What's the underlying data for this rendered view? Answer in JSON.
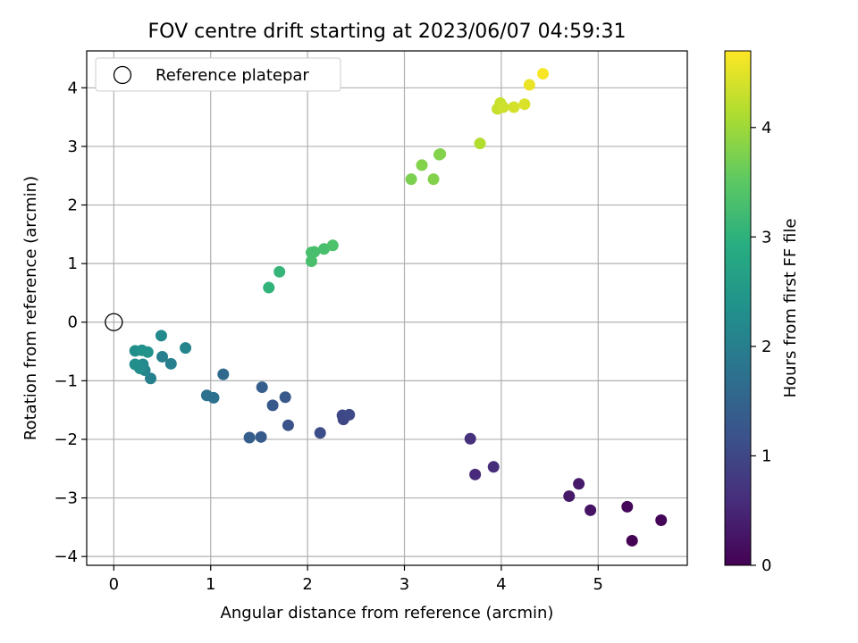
{
  "chart_data": {
    "type": "scatter",
    "title": "FOV centre drift starting at 2023/06/07 04:59:31",
    "xlabel": "Angular distance from reference (arcmin)",
    "ylabel": "Rotation from reference (arcmin)",
    "xlim": [
      -0.28,
      5.92
    ],
    "ylim": [
      -4.15,
      4.63
    ],
    "xticks": [
      0,
      1,
      2,
      3,
      4,
      5
    ],
    "xtick_labels": [
      "0",
      "1",
      "2",
      "3",
      "4",
      "5"
    ],
    "yticks": [
      -4,
      -3,
      -2,
      -1,
      0,
      1,
      2,
      3,
      4
    ],
    "ytick_labels": [
      "−4",
      "−3",
      "−2",
      "−1",
      "0",
      "1",
      "2",
      "3",
      "4"
    ],
    "grid": true,
    "legend": {
      "placement": "top-left",
      "entries": [
        {
          "label": "Reference platepar",
          "marker": "open-circle"
        }
      ]
    },
    "reference_point": {
      "x": 0,
      "y": 0
    },
    "colorbar": {
      "label": "Hours from first FF file",
      "colormap": "viridis",
      "range": [
        0,
        4.7
      ],
      "ticks": [
        0,
        1,
        2,
        3,
        4
      ],
      "tick_labels": [
        "0",
        "1",
        "2",
        "3",
        "4"
      ]
    },
    "points": [
      {
        "x": 5.35,
        "y": -3.73,
        "t": 0.02
      },
      {
        "x": 5.65,
        "y": -3.38,
        "t": 0.05
      },
      {
        "x": 5.3,
        "y": -3.15,
        "t": 0.08
      },
      {
        "x": 4.92,
        "y": -3.21,
        "t": 0.25
      },
      {
        "x": 4.7,
        "y": -2.97,
        "t": 0.32
      },
      {
        "x": 4.8,
        "y": -2.76,
        "t": 0.35
      },
      {
        "x": 3.73,
        "y": -2.6,
        "t": 0.55
      },
      {
        "x": 3.92,
        "y": -2.47,
        "t": 0.6
      },
      {
        "x": 3.68,
        "y": -1.99,
        "t": 0.65
      },
      {
        "x": 2.37,
        "y": -1.66,
        "t": 1.0
      },
      {
        "x": 2.36,
        "y": -1.59,
        "t": 1.02
      },
      {
        "x": 2.43,
        "y": -1.58,
        "t": 1.04
      },
      {
        "x": 2.13,
        "y": -1.89,
        "t": 1.1
      },
      {
        "x": 1.8,
        "y": -1.76,
        "t": 1.2
      },
      {
        "x": 1.52,
        "y": -1.96,
        "t": 1.35
      },
      {
        "x": 1.4,
        "y": -1.97,
        "t": 1.4
      },
      {
        "x": 1.64,
        "y": -1.42,
        "t": 1.3
      },
      {
        "x": 1.53,
        "y": -1.11,
        "t": 1.4
      },
      {
        "x": 1.77,
        "y": -1.28,
        "t": 1.3
      },
      {
        "x": 1.13,
        "y": -0.89,
        "t": 1.6
      },
      {
        "x": 0.96,
        "y": -1.25,
        "t": 1.75
      },
      {
        "x": 1.03,
        "y": -1.29,
        "t": 1.75
      },
      {
        "x": 0.59,
        "y": -0.71,
        "t": 2.0
      },
      {
        "x": 0.5,
        "y": -0.59,
        "t": 2.0
      },
      {
        "x": 0.74,
        "y": -0.44,
        "t": 2.1
      },
      {
        "x": 0.49,
        "y": -0.23,
        "t": 2.2
      },
      {
        "x": 0.38,
        "y": -0.96,
        "t": 2.05
      },
      {
        "x": 0.32,
        "y": -0.82,
        "t": 2.1
      },
      {
        "x": 0.3,
        "y": -0.72,
        "t": 2.2
      },
      {
        "x": 0.27,
        "y": -0.79,
        "t": 2.25
      },
      {
        "x": 0.22,
        "y": -0.72,
        "t": 2.3
      },
      {
        "x": 0.22,
        "y": -0.49,
        "t": 2.3
      },
      {
        "x": 0.29,
        "y": -0.48,
        "t": 2.35
      },
      {
        "x": 0.35,
        "y": -0.51,
        "t": 2.4
      },
      {
        "x": 1.6,
        "y": 0.59,
        "t": 3.05
      },
      {
        "x": 1.71,
        "y": 0.86,
        "t": 3.1
      },
      {
        "x": 2.04,
        "y": 1.04,
        "t": 3.3
      },
      {
        "x": 2.04,
        "y": 1.19,
        "t": 3.3
      },
      {
        "x": 2.07,
        "y": 1.2,
        "t": 3.3
      },
      {
        "x": 2.17,
        "y": 1.25,
        "t": 3.3
      },
      {
        "x": 2.26,
        "y": 1.31,
        "t": 3.35
      },
      {
        "x": 3.07,
        "y": 2.44,
        "t": 3.75
      },
      {
        "x": 3.18,
        "y": 2.68,
        "t": 3.8
      },
      {
        "x": 3.3,
        "y": 2.44,
        "t": 3.8
      },
      {
        "x": 3.36,
        "y": 2.86,
        "t": 3.8
      },
      {
        "x": 3.37,
        "y": 2.87,
        "t": 3.8
      },
      {
        "x": 3.78,
        "y": 3.05,
        "t": 4.15
      },
      {
        "x": 3.96,
        "y": 3.64,
        "t": 4.3
      },
      {
        "x": 3.99,
        "y": 3.74,
        "t": 4.3
      },
      {
        "x": 4.02,
        "y": 3.67,
        "t": 4.35
      },
      {
        "x": 4.13,
        "y": 3.67,
        "t": 4.4
      },
      {
        "x": 4.24,
        "y": 3.72,
        "t": 4.45
      },
      {
        "x": 4.29,
        "y": 4.05,
        "t": 4.55
      },
      {
        "x": 4.43,
        "y": 4.24,
        "t": 4.65
      }
    ]
  }
}
